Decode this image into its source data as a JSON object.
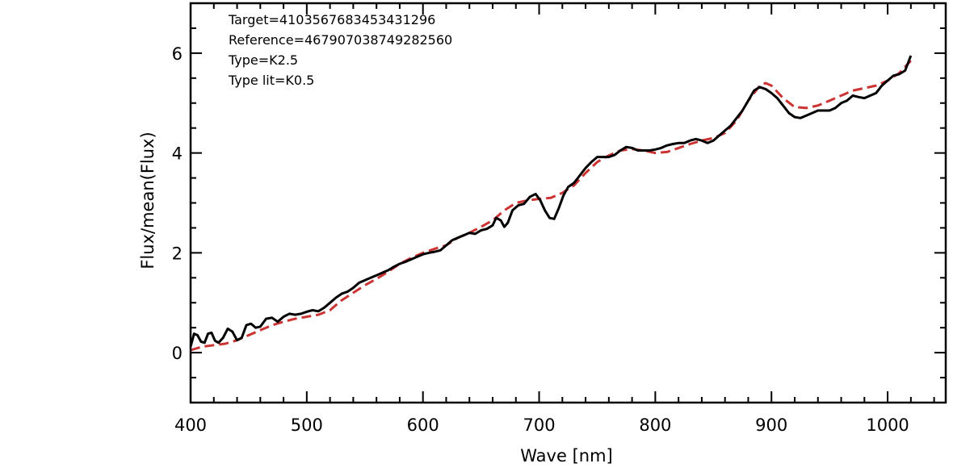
{
  "chart_data": {
    "type": "line",
    "xlabel": "Wave [nm]",
    "ylabel": "Flux/mean(Flux)",
    "xlim": [
      400,
      1050
    ],
    "ylim": [
      -1,
      7
    ],
    "x_ticks": [
      400,
      500,
      600,
      700,
      800,
      900,
      1000
    ],
    "y_ticks": [
      0,
      2,
      4,
      6
    ],
    "grid": false,
    "annotations": [
      "Target=4103567683453431296",
      "Reference=4679070387492825​60",
      "Type=K2.5",
      "Type lit=K0.5"
    ],
    "series": [
      {
        "color": "#000000",
        "style": "solid",
        "points": [
          [
            400,
            0.12
          ],
          [
            403,
            0.38
          ],
          [
            406,
            0.35
          ],
          [
            409,
            0.22
          ],
          [
            412,
            0.2
          ],
          [
            415,
            0.38
          ],
          [
            418,
            0.4
          ],
          [
            421,
            0.24
          ],
          [
            424,
            0.2
          ],
          [
            428,
            0.3
          ],
          [
            432,
            0.48
          ],
          [
            436,
            0.42
          ],
          [
            440,
            0.25
          ],
          [
            444,
            0.3
          ],
          [
            448,
            0.55
          ],
          [
            452,
            0.58
          ],
          [
            456,
            0.5
          ],
          [
            460,
            0.52
          ],
          [
            465,
            0.68
          ],
          [
            470,
            0.7
          ],
          [
            475,
            0.62
          ],
          [
            480,
            0.72
          ],
          [
            485,
            0.78
          ],
          [
            490,
            0.76
          ],
          [
            495,
            0.78
          ],
          [
            500,
            0.82
          ],
          [
            505,
            0.85
          ],
          [
            510,
            0.83
          ],
          [
            515,
            0.9
          ],
          [
            520,
            1.0
          ],
          [
            525,
            1.1
          ],
          [
            530,
            1.18
          ],
          [
            535,
            1.22
          ],
          [
            540,
            1.3
          ],
          [
            545,
            1.4
          ],
          [
            550,
            1.45
          ],
          [
            555,
            1.5
          ],
          [
            560,
            1.55
          ],
          [
            565,
            1.6
          ],
          [
            570,
            1.65
          ],
          [
            575,
            1.72
          ],
          [
            580,
            1.78
          ],
          [
            585,
            1.82
          ],
          [
            590,
            1.87
          ],
          [
            595,
            1.92
          ],
          [
            600,
            1.97
          ],
          [
            605,
            2.0
          ],
          [
            610,
            2.02
          ],
          [
            615,
            2.05
          ],
          [
            620,
            2.15
          ],
          [
            625,
            2.25
          ],
          [
            630,
            2.3
          ],
          [
            635,
            2.35
          ],
          [
            640,
            2.4
          ],
          [
            645,
            2.38
          ],
          [
            650,
            2.45
          ],
          [
            655,
            2.48
          ],
          [
            660,
            2.55
          ],
          [
            663,
            2.7
          ],
          [
            667,
            2.65
          ],
          [
            670,
            2.52
          ],
          [
            673,
            2.6
          ],
          [
            677,
            2.85
          ],
          [
            682,
            2.95
          ],
          [
            687,
            2.98
          ],
          [
            692,
            3.12
          ],
          [
            697,
            3.18
          ],
          [
            701,
            3.05
          ],
          [
            705,
            2.85
          ],
          [
            709,
            2.7
          ],
          [
            713,
            2.68
          ],
          [
            717,
            2.9
          ],
          [
            721,
            3.15
          ],
          [
            725,
            3.32
          ],
          [
            730,
            3.4
          ],
          [
            735,
            3.55
          ],
          [
            740,
            3.7
          ],
          [
            745,
            3.82
          ],
          [
            750,
            3.92
          ],
          [
            755,
            3.92
          ],
          [
            760,
            3.92
          ],
          [
            765,
            3.96
          ],
          [
            770,
            4.05
          ],
          [
            775,
            4.12
          ],
          [
            780,
            4.1
          ],
          [
            785,
            4.05
          ],
          [
            790,
            4.05
          ],
          [
            795,
            4.05
          ],
          [
            800,
            4.07
          ],
          [
            805,
            4.1
          ],
          [
            810,
            4.15
          ],
          [
            815,
            4.18
          ],
          [
            820,
            4.2
          ],
          [
            825,
            4.2
          ],
          [
            830,
            4.25
          ],
          [
            835,
            4.28
          ],
          [
            840,
            4.25
          ],
          [
            845,
            4.2
          ],
          [
            850,
            4.25
          ],
          [
            855,
            4.35
          ],
          [
            860,
            4.45
          ],
          [
            865,
            4.55
          ],
          [
            870,
            4.7
          ],
          [
            875,
            4.85
          ],
          [
            880,
            5.05
          ],
          [
            885,
            5.25
          ],
          [
            890,
            5.32
          ],
          [
            895,
            5.28
          ],
          [
            900,
            5.2
          ],
          [
            905,
            5.1
          ],
          [
            910,
            4.95
          ],
          [
            915,
            4.8
          ],
          [
            920,
            4.72
          ],
          [
            925,
            4.7
          ],
          [
            930,
            4.75
          ],
          [
            935,
            4.8
          ],
          [
            940,
            4.85
          ],
          [
            945,
            4.85
          ],
          [
            950,
            4.85
          ],
          [
            955,
            4.9
          ],
          [
            960,
            5.0
          ],
          [
            965,
            5.05
          ],
          [
            970,
            5.15
          ],
          [
            975,
            5.12
          ],
          [
            980,
            5.1
          ],
          [
            985,
            5.15
          ],
          [
            990,
            5.2
          ],
          [
            995,
            5.35
          ],
          [
            1000,
            5.45
          ],
          [
            1005,
            5.55
          ],
          [
            1010,
            5.58
          ],
          [
            1015,
            5.65
          ],
          [
            1020,
            5.95
          ]
        ]
      },
      {
        "color": "#cc3333",
        "style": "dashed",
        "points": [
          [
            400,
            0.05
          ],
          [
            410,
            0.12
          ],
          [
            420,
            0.15
          ],
          [
            430,
            0.18
          ],
          [
            440,
            0.25
          ],
          [
            450,
            0.35
          ],
          [
            460,
            0.45
          ],
          [
            470,
            0.55
          ],
          [
            480,
            0.62
          ],
          [
            490,
            0.68
          ],
          [
            500,
            0.72
          ],
          [
            510,
            0.76
          ],
          [
            520,
            0.85
          ],
          [
            530,
            1.05
          ],
          [
            540,
            1.2
          ],
          [
            550,
            1.35
          ],
          [
            560,
            1.48
          ],
          [
            570,
            1.62
          ],
          [
            580,
            1.78
          ],
          [
            590,
            1.9
          ],
          [
            600,
            2.0
          ],
          [
            610,
            2.08
          ],
          [
            620,
            2.15
          ],
          [
            630,
            2.3
          ],
          [
            640,
            2.4
          ],
          [
            650,
            2.52
          ],
          [
            660,
            2.65
          ],
          [
            670,
            2.85
          ],
          [
            680,
            3.0
          ],
          [
            690,
            3.05
          ],
          [
            700,
            3.08
          ],
          [
            710,
            3.1
          ],
          [
            720,
            3.2
          ],
          [
            730,
            3.35
          ],
          [
            740,
            3.6
          ],
          [
            750,
            3.82
          ],
          [
            760,
            3.95
          ],
          [
            770,
            4.05
          ],
          [
            780,
            4.08
          ],
          [
            790,
            4.05
          ],
          [
            800,
            4.0
          ],
          [
            810,
            4.02
          ],
          [
            820,
            4.1
          ],
          [
            830,
            4.18
          ],
          [
            840,
            4.25
          ],
          [
            850,
            4.3
          ],
          [
            860,
            4.4
          ],
          [
            870,
            4.65
          ],
          [
            880,
            5.05
          ],
          [
            890,
            5.35
          ],
          [
            895,
            5.4
          ],
          [
            900,
            5.35
          ],
          [
            910,
            5.1
          ],
          [
            920,
            4.92
          ],
          [
            930,
            4.9
          ],
          [
            940,
            4.95
          ],
          [
            950,
            5.05
          ],
          [
            960,
            5.15
          ],
          [
            970,
            5.25
          ],
          [
            980,
            5.3
          ],
          [
            990,
            5.35
          ],
          [
            1000,
            5.45
          ],
          [
            1010,
            5.6
          ],
          [
            1020,
            5.85
          ]
        ]
      }
    ]
  }
}
